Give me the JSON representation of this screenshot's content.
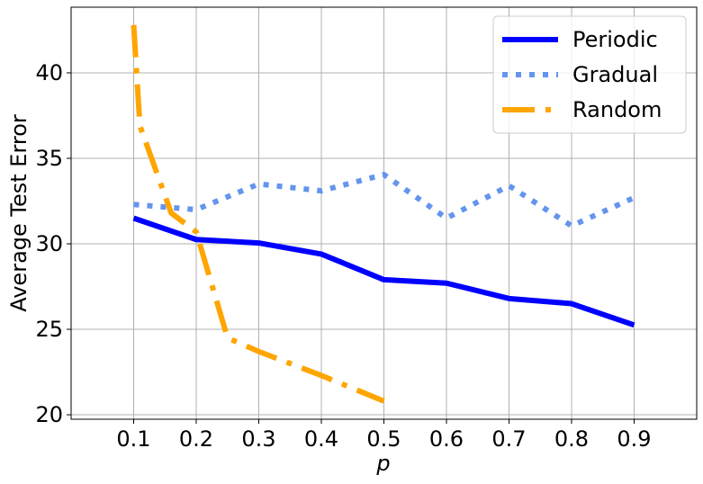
{
  "chart_data": {
    "type": "line",
    "xlabel": "p",
    "ylabel": "Average Test Error",
    "x": [
      0.1,
      0.2,
      0.3,
      0.4,
      0.5,
      0.6,
      0.7,
      0.8,
      0.9
    ],
    "series": [
      {
        "name": "Periodic",
        "color": "#0000ff",
        "style": "solid",
        "values": [
          31.5,
          30.25,
          30.05,
          29.4,
          27.9,
          27.7,
          26.8,
          26.5,
          25.25
        ]
      },
      {
        "name": "Gradual",
        "color": "#6495ed",
        "style": "dotted",
        "values": [
          32.3,
          32.0,
          33.5,
          33.1,
          34.05,
          31.5,
          33.4,
          31.05,
          32.7
        ]
      },
      {
        "name": "Random",
        "color": "#ffa500",
        "style": "dashdot",
        "x": [
          0.1,
          0.11,
          0.16,
          0.2,
          0.25,
          0.3,
          0.4,
          0.5
        ],
        "values": [
          42.8,
          36.9,
          31.8,
          30.7,
          24.5,
          23.7,
          22.3,
          20.8
        ]
      }
    ],
    "xlim": [
      0,
      1
    ],
    "ylim": [
      19.74,
      43.84
    ],
    "xticks": [
      0.1,
      0.2,
      0.3,
      0.4,
      0.5,
      0.6,
      0.7,
      0.8,
      0.9
    ],
    "yticks": [
      20,
      25,
      30,
      35,
      40
    ],
    "grid": true,
    "legend": "upper right"
  }
}
